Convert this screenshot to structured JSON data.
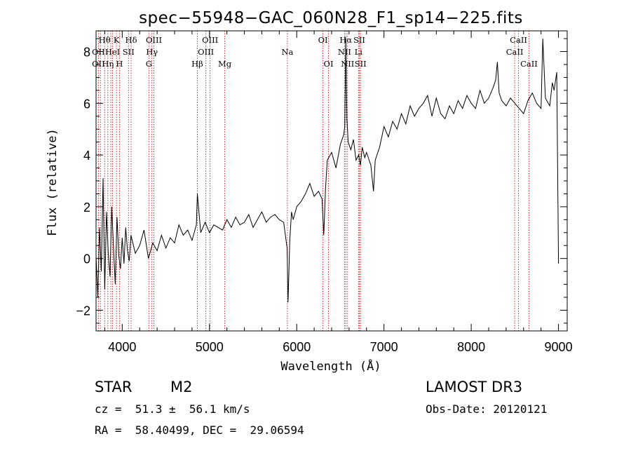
{
  "chart_data": {
    "type": "line",
    "title": "spec−55948−GAC_060N28_F1_sp14−225.fits",
    "xlabel": "Wavelength (Å)",
    "ylabel": "Flux (relative)",
    "xlim": [
      3700,
      9100
    ],
    "ylim": [
      -2.8,
      8.8
    ],
    "x_ticks": [
      4000,
      5000,
      6000,
      7000,
      8000,
      9000
    ],
    "y_ticks": [
      -2,
      0,
      2,
      4,
      6,
      8
    ],
    "series": [
      {
        "name": "flux",
        "x": [
          3700,
          3720,
          3740,
          3760,
          3780,
          3800,
          3820,
          3840,
          3860,
          3880,
          3900,
          3920,
          3940,
          3960,
          3980,
          4000,
          4020,
          4040,
          4060,
          4080,
          4100,
          4150,
          4200,
          4250,
          4300,
          4350,
          4400,
          4450,
          4500,
          4550,
          4600,
          4650,
          4700,
          4750,
          4800,
          4850,
          4861,
          4900,
          4950,
          5000,
          5050,
          5100,
          5150,
          5200,
          5250,
          5300,
          5350,
          5400,
          5450,
          5500,
          5550,
          5600,
          5650,
          5700,
          5750,
          5800,
          5850,
          5890,
          5900,
          5910,
          5920,
          5940,
          5960,
          6000,
          6050,
          6100,
          6150,
          6200,
          6250,
          6290,
          6310,
          6330,
          6350,
          6400,
          6450,
          6500,
          6540,
          6550,
          6563,
          6575,
          6590,
          6620,
          6650,
          6680,
          6710,
          6730,
          6750,
          6780,
          6800,
          6850,
          6880,
          6900,
          6950,
          7000,
          7050,
          7100,
          7150,
          7200,
          7250,
          7300,
          7350,
          7400,
          7450,
          7500,
          7550,
          7600,
          7650,
          7700,
          7750,
          7800,
          7850,
          7900,
          7950,
          8000,
          8050,
          8100,
          8150,
          8200,
          8250,
          8280,
          8300,
          8320,
          8350,
          8400,
          8450,
          8500,
          8550,
          8600,
          8650,
          8700,
          8750,
          8800,
          8820,
          8850,
          8900,
          8930,
          8950,
          8980,
          9000
        ],
        "values": [
          0.1,
          -1.5,
          1.2,
          -0.5,
          3.1,
          -1.2,
          1.8,
          0.2,
          -0.7,
          2.0,
          0.4,
          -1.0,
          1.6,
          0.1,
          -0.4,
          0.8,
          -0.2,
          1.2,
          0.3,
          -0.1,
          0.9,
          0.2,
          0.5,
          1.1,
          0.0,
          0.6,
          0.3,
          0.9,
          0.4,
          0.8,
          0.6,
          1.3,
          0.9,
          1.1,
          0.7,
          1.3,
          2.5,
          1.0,
          1.4,
          1.0,
          1.3,
          1.2,
          1.1,
          1.5,
          1.2,
          1.6,
          1.3,
          1.4,
          1.7,
          1.2,
          1.5,
          1.8,
          1.4,
          1.6,
          1.7,
          1.5,
          1.4,
          0.4,
          -1.7,
          -0.6,
          0.7,
          1.8,
          1.5,
          2.0,
          2.2,
          2.5,
          2.9,
          2.4,
          2.6,
          2.3,
          0.9,
          2.7,
          3.8,
          4.1,
          3.5,
          4.4,
          4.8,
          5.1,
          8.5,
          5.4,
          4.5,
          4.2,
          4.6,
          3.8,
          4.0,
          3.6,
          4.3,
          3.9,
          4.1,
          3.6,
          2.6,
          3.8,
          4.3,
          5.1,
          4.7,
          5.3,
          5.0,
          5.6,
          5.2,
          5.9,
          5.5,
          5.8,
          6.0,
          6.3,
          5.5,
          6.2,
          5.6,
          5.4,
          5.9,
          5.6,
          6.1,
          5.8,
          6.3,
          6.0,
          5.8,
          6.5,
          6.0,
          6.2,
          6.6,
          6.9,
          7.6,
          6.4,
          6.1,
          5.9,
          6.2,
          6.0,
          5.8,
          5.6,
          6.1,
          6.4,
          6.0,
          5.8,
          8.5,
          6.2,
          5.9,
          6.8,
          6.5,
          7.2,
          -0.2
        ]
      }
    ],
    "spectral_lines": [
      {
        "label": "Hθ",
        "wavelength": 3798,
        "row": 1
      },
      {
        "label": "K",
        "wavelength": 3934,
        "row": 1
      },
      {
        "label": "Hδ",
        "wavelength": 4102,
        "row": 1
      },
      {
        "label": "OIII",
        "wavelength": 4363,
        "row": 1
      },
      {
        "label": "OIII",
        "wavelength": 5007,
        "row": 1
      },
      {
        "label": "Na",
        "wavelength": 5893,
        "row": 2
      },
      {
        "label": "OI",
        "wavelength": 6300,
        "row": 1
      },
      {
        "label": "Hα",
        "wavelength": 6563,
        "row": 1
      },
      {
        "label": "SII",
        "wavelength": 6717,
        "row": 1
      },
      {
        "label": "CaII",
        "wavelength": 8542,
        "row": 1
      },
      {
        "label": "OII",
        "wavelength": 3727,
        "row": 2
      },
      {
        "label": "HeI",
        "wavelength": 3889,
        "row": 2
      },
      {
        "label": "SII",
        "wavelength": 4072,
        "row": 2
      },
      {
        "label": "Hγ",
        "wavelength": 4340,
        "row": 2
      },
      {
        "label": "OIII",
        "wavelength": 4959,
        "row": 2
      },
      {
        "label": "NII",
        "wavelength": 6548,
        "row": 2
      },
      {
        "label": "Li",
        "wavelength": 6708,
        "row": 2
      },
      {
        "label": "CaII",
        "wavelength": 8498,
        "row": 2
      },
      {
        "label": "OII",
        "wavelength": 3727,
        "row": 3
      },
      {
        "label": "Hη",
        "wavelength": 3835,
        "row": 3
      },
      {
        "label": "H",
        "wavelength": 3968,
        "row": 3
      },
      {
        "label": "G",
        "wavelength": 4305,
        "row": 3
      },
      {
        "label": "Hβ",
        "wavelength": 4861,
        "row": 3
      },
      {
        "label": "Mg",
        "wavelength": 5175,
        "row": 3
      },
      {
        "label": "OI",
        "wavelength": 6364,
        "row": 3
      },
      {
        "label": "NII",
        "wavelength": 6583,
        "row": 3
      },
      {
        "label": "SII",
        "wavelength": 6731,
        "row": 3
      },
      {
        "label": "CaII",
        "wavelength": 8662,
        "row": 3
      }
    ],
    "line_wavelengths": [
      3727,
      3750,
      3798,
      3835,
      3869,
      3889,
      3934,
      3968,
      4072,
      4102,
      4305,
      4340,
      4363,
      4861,
      4959,
      5007,
      5175,
      5893,
      6300,
      6364,
      6548,
      6563,
      6583,
      6708,
      6717,
      6731,
      8498,
      8542,
      8662
    ]
  },
  "info": {
    "class": "STAR",
    "subclass": "M2",
    "survey": "LAMOST DR3",
    "redshift": "cz =  51.3 ±  56.1 km/s",
    "obs_date": "Obs-Date: 20120121",
    "coords": "RA =  58.40499, DEC =  29.06594"
  },
  "colors": {
    "axis": "#000000",
    "lines": "#c00000",
    "background": "#ffffff"
  }
}
